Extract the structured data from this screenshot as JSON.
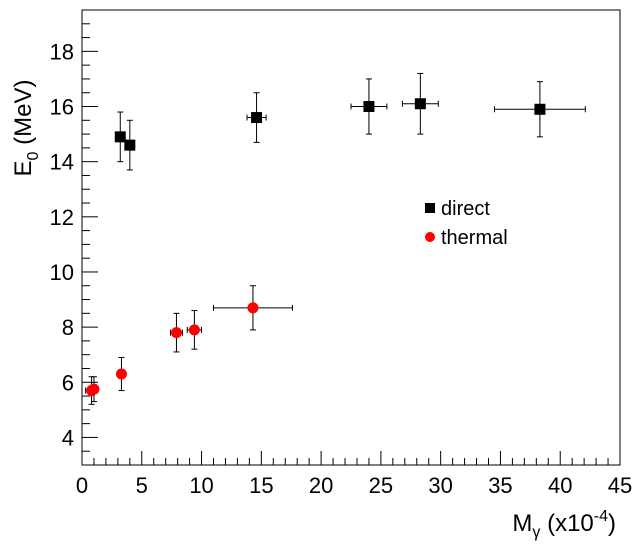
{
  "chart_data": {
    "type": "scatter",
    "xlim": [
      0,
      45
    ],
    "ylim": [
      3,
      19.5
    ],
    "xticks": [
      0,
      5,
      10,
      15,
      20,
      25,
      30,
      35,
      40,
      45
    ],
    "yticks": [
      4,
      6,
      8,
      10,
      12,
      14,
      16,
      18
    ],
    "xlabel_main": "M",
    "xlabel_sub": "γ",
    "xlabel_rest": " (x10",
    "xlabel_sup": "-4",
    "xlabel_end": ")",
    "ylabel_main": "E",
    "ylabel_sub": "0",
    "ylabel_rest": " (MeV)",
    "grid": false,
    "legend_position": "center-right",
    "series": [
      {
        "name": "direct",
        "marker": "square",
        "color": "#000000",
        "points": [
          {
            "x": 3.2,
            "y": 14.9,
            "xerr": 0.3,
            "yerr": 0.9
          },
          {
            "x": 4.0,
            "y": 14.6,
            "xerr": 0.3,
            "yerr": 0.9
          },
          {
            "x": 14.6,
            "y": 15.6,
            "xerr": 0.8,
            "yerr": 0.9
          },
          {
            "x": 24.0,
            "y": 16.0,
            "xerr": 1.5,
            "yerr": 1.0
          },
          {
            "x": 28.3,
            "y": 16.1,
            "xerr": 1.5,
            "yerr": 1.1
          },
          {
            "x": 38.3,
            "y": 15.9,
            "xerr": 3.8,
            "yerr": 1.0
          }
        ]
      },
      {
        "name": "thermal",
        "marker": "circle",
        "color": "#ff0000",
        "points": [
          {
            "x": 0.8,
            "y": 5.7,
            "xerr": 0.5,
            "yerr": 0.5
          },
          {
            "x": 1.0,
            "y": 5.75,
            "xerr": 0.3,
            "yerr": 0.45
          },
          {
            "x": 3.3,
            "y": 6.3,
            "xerr": 0.3,
            "yerr": 0.6
          },
          {
            "x": 7.9,
            "y": 7.8,
            "xerr": 0.5,
            "yerr": 0.7
          },
          {
            "x": 9.4,
            "y": 7.9,
            "xerr": 0.6,
            "yerr": 0.7
          },
          {
            "x": 14.3,
            "y": 8.7,
            "xerr": 3.3,
            "yerr": 0.8
          }
        ]
      }
    ]
  }
}
